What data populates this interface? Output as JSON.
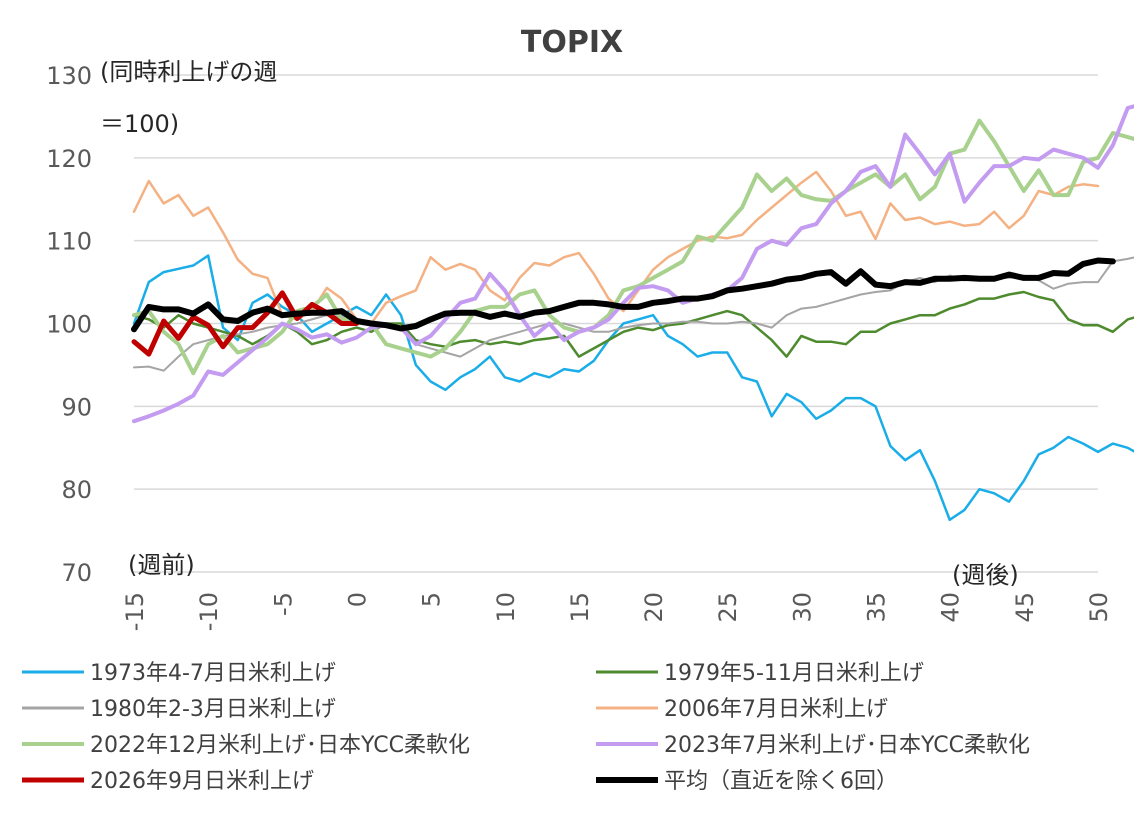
{
  "chart_data": {
    "type": "line",
    "title": "TOPIX",
    "ylabel_lines": [
      "(同時利上げの週",
      "＝100)"
    ],
    "x_annot_left": "(週前)",
    "x_annot_right": "(週後)",
    "xlim": [
      -15,
      50
    ],
    "ylim": [
      70,
      130
    ],
    "x_ticks": [
      -15,
      -10,
      -5,
      0,
      5,
      10,
      15,
      20,
      25,
      30,
      35,
      40,
      45,
      50
    ],
    "y_ticks": [
      70,
      80,
      90,
      100,
      110,
      120,
      130
    ],
    "grid": "horizontal",
    "series": [
      {
        "name": "1973年4-7月日米利上げ",
        "color": "#1AADE8",
        "width": 2.5,
        "x_start": -15,
        "values": [
          100,
          105,
          106.2,
          106.6,
          107,
          108.2,
          99.5,
          98,
          102.5,
          103.5,
          102,
          101,
          99,
          100,
          101,
          102,
          101,
          103.5,
          101,
          95,
          93,
          92,
          93.5,
          94.5,
          96,
          93.5,
          93,
          94,
          93.5,
          94.5,
          94.2,
          95.5,
          98,
          100,
          100.5,
          101,
          98.5,
          97.5,
          96,
          96.5,
          96.5,
          93.5,
          93,
          88.8,
          91.5,
          90.5,
          88.5,
          89.5,
          91,
          91,
          90,
          85.2,
          83.5,
          84.7,
          81,
          76.3,
          77.5,
          80,
          79.5,
          78.5,
          81,
          84.2,
          85,
          86.3,
          85.5,
          84.5,
          85.5,
          85,
          84,
          82.7
        ]
      },
      {
        "name": "1979年5-11月日米利上げ",
        "color": "#4E8A2E",
        "width": 2.5,
        "x_start": -15,
        "values": [
          101,
          100.5,
          99.5,
          101,
          100,
          99.5,
          99,
          98.5,
          97.5,
          98.5,
          100,
          99,
          97.5,
          98,
          99,
          99.5,
          99,
          100,
          100,
          98,
          97.5,
          97.2,
          97.8,
          98,
          97.5,
          97.8,
          97.5,
          98,
          98.2,
          98.5,
          96,
          97,
          98,
          99,
          99.5,
          99.2,
          99.8,
          100,
          100.5,
          101,
          101.5,
          101,
          99.5,
          98,
          96,
          98.5,
          97.8,
          97.8,
          97.5,
          99,
          99,
          100,
          100.5,
          101,
          101,
          101.8,
          102.3,
          103,
          103,
          103.5,
          103.8,
          103.2,
          102.8,
          100.5,
          99.8,
          99.8,
          99,
          100.5,
          101,
          101.8
        ]
      },
      {
        "name": "1980年2-3月日米利上げ",
        "color": "#A5A5A5",
        "width": 2,
        "x_start": -15,
        "values": [
          94.7,
          94.8,
          94.3,
          96,
          97.5,
          98,
          98.5,
          98.7,
          99,
          99.5,
          99.8,
          100,
          100.5,
          101,
          100.8,
          100.5,
          100,
          100,
          99.5,
          97.5,
          97,
          96.5,
          96,
          97,
          98,
          98.5,
          99,
          99.5,
          100,
          100,
          99.5,
          99,
          99,
          99.5,
          99.8,
          100,
          100,
          100.2,
          100.2,
          100,
          100,
          100.2,
          100,
          99.5,
          101,
          101.8,
          102,
          102.5,
          103,
          103.5,
          103.8,
          104,
          105,
          105.5,
          105,
          105.8,
          105.2,
          105.5,
          105.5,
          105.5,
          105.8,
          105.2,
          104.2,
          104.8,
          105,
          105,
          107.5,
          107.8,
          108.2,
          108.5,
          108.3
        ]
      },
      {
        "name": "2006年7月日米利上げ",
        "color": "#F4B183",
        "width": 2.5,
        "x_start": -15,
        "values": [
          113.5,
          117.2,
          114.5,
          115.5,
          113,
          114,
          111,
          107.7,
          106,
          105.5,
          101,
          100.5,
          101.5,
          104.3,
          103,
          100.5,
          100,
          102.5,
          103.3,
          104,
          108,
          106.5,
          107.2,
          106.5,
          104,
          102.8,
          105.5,
          107.3,
          107,
          108,
          108.5,
          106,
          103,
          101.5,
          104,
          106.5,
          108,
          109,
          110,
          110.5,
          110.3,
          110.7,
          112.5,
          114,
          115.5,
          117,
          118.3,
          116,
          113,
          113.5,
          110.2,
          114.5,
          112.5,
          112.8,
          112,
          112.3,
          111.8,
          112,
          113.5,
          111.5,
          113,
          116,
          115.5,
          116.5,
          116.8,
          116.6
        ]
      },
      {
        "name": "2022年12月米利上げ･日本YCC柔軟化",
        "color": "#A9D18E",
        "width": 4,
        "x_start": -15,
        "values": [
          101,
          101.5,
          99,
          97.5,
          94,
          97.5,
          98.5,
          96.5,
          97,
          97.5,
          99,
          101.5,
          102,
          103.5,
          100.5,
          100.5,
          100,
          97.5,
          97,
          96.5,
          96,
          97,
          99,
          101.5,
          102,
          102,
          103.5,
          104,
          101,
          99.5,
          99,
          99.5,
          101,
          104,
          104.5,
          105.5,
          106.5,
          107.5,
          110.5,
          110,
          112,
          114,
          118,
          116,
          117.5,
          115.5,
          115,
          114.8,
          116,
          117,
          118,
          116.5,
          118,
          115,
          116.5,
          120.5,
          121,
          124.5,
          122,
          119,
          116,
          118.5,
          115.5,
          115.5,
          119.5,
          120,
          123,
          122.5,
          122
        ]
      },
      {
        "name": "2023年7月米利上げ･日本YCC柔軟化",
        "color": "#C39BF0",
        "width": 4,
        "x_start": -15,
        "values": [
          88.2,
          88.8,
          89.5,
          90.3,
          91.3,
          94.2,
          93.8,
          95.3,
          96.8,
          98.3,
          100,
          99.3,
          98.3,
          98.7,
          97.7,
          98.3,
          99.5,
          99.8,
          99.5,
          97.5,
          98.5,
          100.5,
          102.5,
          103,
          106,
          104,
          101,
          98.5,
          100,
          98,
          99,
          99.5,
          100.5,
          102.5,
          104.3,
          104.5,
          104,
          102.5,
          103,
          103.5,
          104,
          105.5,
          109,
          110,
          109.5,
          111.5,
          112,
          114.5,
          116,
          118.3,
          119,
          116.5,
          122.8,
          120.5,
          118,
          120.5,
          114.7,
          117,
          119,
          119,
          120,
          119.8,
          121,
          120.5,
          120,
          118.8,
          121.5,
          126,
          126.5
        ]
      },
      {
        "name": "2026年9月日米利上げ",
        "color": "#C00000",
        "width": 5,
        "x_start": -15,
        "values": [
          97.8,
          96.3,
          100.3,
          98.2,
          100.8,
          99.8,
          97.2,
          99.5,
          99.5,
          101.3,
          103.7,
          100.6,
          102.3,
          101.3,
          100,
          100
        ]
      },
      {
        "name": "平均（直近を除く6回）",
        "color": "#000000",
        "width": 6,
        "x_start": -15,
        "values": [
          99.3,
          102,
          101.7,
          101.7,
          101.2,
          102.3,
          100.5,
          100.3,
          101.3,
          101.8,
          101,
          101.2,
          101.3,
          101.3,
          101.5,
          100.3,
          100,
          99.8,
          99.4,
          99.7,
          100.5,
          101.2,
          101.3,
          101.3,
          100.8,
          101.2,
          100.8,
          101.3,
          101.5,
          102,
          102.5,
          102.5,
          102.3,
          102,
          102,
          102.5,
          102.7,
          103,
          103,
          103.3,
          104,
          104.2,
          104.5,
          104.8,
          105.3,
          105.5,
          106,
          106.2,
          104.8,
          106.3,
          104.7,
          104.5,
          105,
          104.9,
          105.4,
          105.4,
          105.5,
          105.4,
          105.4,
          105.9,
          105.5,
          105.5,
          106.1,
          106,
          107.2,
          107.6,
          107.5
        ]
      }
    ],
    "legend": {
      "placement": "bottom",
      "columns": 2
    }
  }
}
